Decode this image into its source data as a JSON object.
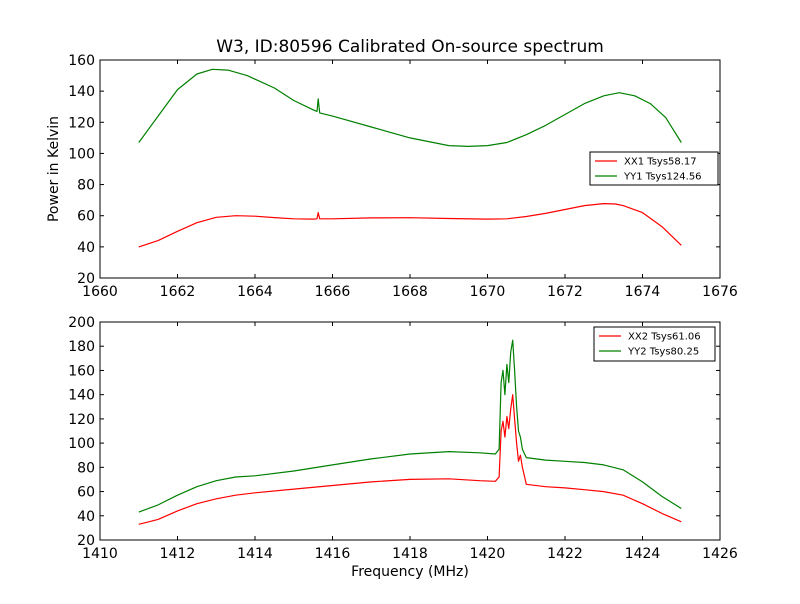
{
  "chart_data": [
    {
      "type": "line",
      "title": "W3, ID:80596 Calibrated On-source spectrum",
      "xlabel": "",
      "ylabel": "Power in Kelvin",
      "xlim": [
        1660,
        1676
      ],
      "ylim": [
        20,
        160
      ],
      "xticks": [
        "1660",
        "1662",
        "1664",
        "1666",
        "1668",
        "1670",
        "1672",
        "1674",
        "1676"
      ],
      "yticks": [
        "20",
        "40",
        "60",
        "80",
        "100",
        "120",
        "140",
        "160"
      ],
      "legend_position": "center-right",
      "series": [
        {
          "name": "XX1 Tsys58.17",
          "color": "#ff0000",
          "points": [
            [
              1661.0,
              40
            ],
            [
              1661.5,
              44
            ],
            [
              1662.0,
              50
            ],
            [
              1662.5,
              55.5
            ],
            [
              1663.0,
              59
            ],
            [
              1663.5,
              60
            ],
            [
              1664.0,
              59.7
            ],
            [
              1664.5,
              58.8
            ],
            [
              1665.0,
              58
            ],
            [
              1665.5,
              57.8
            ],
            [
              1665.6,
              58
            ],
            [
              1665.63,
              62
            ],
            [
              1665.67,
              58
            ],
            [
              1666.0,
              58
            ],
            [
              1667.0,
              58.6
            ],
            [
              1668.0,
              58.7
            ],
            [
              1669.0,
              58.2
            ],
            [
              1670.0,
              57.8
            ],
            [
              1670.5,
              58
            ],
            [
              1671.0,
              59.5
            ],
            [
              1671.5,
              61.5
            ],
            [
              1672.0,
              64
            ],
            [
              1672.5,
              66.5
            ],
            [
              1673.0,
              67.8
            ],
            [
              1673.3,
              67.5
            ],
            [
              1673.5,
              66.5
            ],
            [
              1674.0,
              62
            ],
            [
              1674.5,
              53
            ],
            [
              1675.0,
              41
            ]
          ]
        },
        {
          "name": "YY1 Tsys124.56",
          "color": "#008000",
          "points": [
            [
              1661.0,
              107
            ],
            [
              1661.5,
              124
            ],
            [
              1662.0,
              141
            ],
            [
              1662.5,
              151
            ],
            [
              1662.9,
              154
            ],
            [
              1663.3,
              153.5
            ],
            [
              1663.8,
              150
            ],
            [
              1664.5,
              142
            ],
            [
              1665.0,
              134
            ],
            [
              1665.5,
              128
            ],
            [
              1665.6,
              127
            ],
            [
              1665.63,
              135
            ],
            [
              1665.67,
              126
            ],
            [
              1666.0,
              124
            ],
            [
              1667.0,
              117
            ],
            [
              1668.0,
              110
            ],
            [
              1669.0,
              105
            ],
            [
              1669.5,
              104.5
            ],
            [
              1670.0,
              105
            ],
            [
              1670.5,
              107
            ],
            [
              1671.0,
              112
            ],
            [
              1671.5,
              118
            ],
            [
              1672.0,
              125
            ],
            [
              1672.5,
              132
            ],
            [
              1673.0,
              137
            ],
            [
              1673.4,
              139
            ],
            [
              1673.8,
              137
            ],
            [
              1674.2,
              132
            ],
            [
              1674.6,
              123
            ],
            [
              1675.0,
              107
            ]
          ]
        }
      ]
    },
    {
      "type": "line",
      "title": "",
      "xlabel": "Frequency (MHz)",
      "ylabel": "",
      "xlim": [
        1410,
        1426
      ],
      "ylim": [
        20,
        200
      ],
      "xticks": [
        "1410",
        "1412",
        "1414",
        "1416",
        "1418",
        "1420",
        "1422",
        "1424",
        "1426"
      ],
      "yticks": [
        "20",
        "40",
        "60",
        "80",
        "100",
        "120",
        "140",
        "160",
        "180",
        "200"
      ],
      "legend_position": "top-right",
      "series": [
        {
          "name": "XX2 Tsys61.06",
          "color": "#ff0000",
          "points": [
            [
              1411.0,
              33
            ],
            [
              1411.5,
              37
            ],
            [
              1412.0,
              44
            ],
            [
              1412.5,
              50
            ],
            [
              1413.0,
              54
            ],
            [
              1413.5,
              57
            ],
            [
              1414.0,
              59
            ],
            [
              1415.0,
              62
            ],
            [
              1416.0,
              65
            ],
            [
              1417.0,
              68
            ],
            [
              1418.0,
              70
            ],
            [
              1419.0,
              70.5
            ],
            [
              1419.8,
              69
            ],
            [
              1420.2,
              68.5
            ],
            [
              1420.3,
              72
            ],
            [
              1420.35,
              110
            ],
            [
              1420.4,
              118
            ],
            [
              1420.45,
              105
            ],
            [
              1420.5,
              122
            ],
            [
              1420.55,
              112
            ],
            [
              1420.6,
              128
            ],
            [
              1420.65,
              140
            ],
            [
              1420.7,
              120
            ],
            [
              1420.75,
              100
            ],
            [
              1420.8,
              85
            ],
            [
              1420.85,
              90
            ],
            [
              1420.9,
              80
            ],
            [
              1421.0,
              66
            ],
            [
              1421.5,
              64
            ],
            [
              1422.0,
              63
            ],
            [
              1422.5,
              61.5
            ],
            [
              1423.0,
              60
            ],
            [
              1423.5,
              57
            ],
            [
              1424.0,
              50
            ],
            [
              1424.5,
              42
            ],
            [
              1425.0,
              35
            ]
          ]
        },
        {
          "name": "YY2 Tsys80.25",
          "color": "#008000",
          "points": [
            [
              1411.0,
              43
            ],
            [
              1411.5,
              49
            ],
            [
              1412.0,
              57
            ],
            [
              1412.5,
              64
            ],
            [
              1413.0,
              69
            ],
            [
              1413.5,
              72
            ],
            [
              1414.0,
              73
            ],
            [
              1415.0,
              77
            ],
            [
              1416.0,
              82
            ],
            [
              1417.0,
              87
            ],
            [
              1418.0,
              91
            ],
            [
              1419.0,
              93
            ],
            [
              1419.8,
              92
            ],
            [
              1420.2,
              91
            ],
            [
              1420.3,
              95
            ],
            [
              1420.35,
              150
            ],
            [
              1420.4,
              160
            ],
            [
              1420.45,
              140
            ],
            [
              1420.5,
              165
            ],
            [
              1420.55,
              150
            ],
            [
              1420.6,
              175
            ],
            [
              1420.65,
              185
            ],
            [
              1420.7,
              160
            ],
            [
              1420.75,
              130
            ],
            [
              1420.8,
              110
            ],
            [
              1420.85,
              105
            ],
            [
              1420.9,
              95
            ],
            [
              1421.0,
              88
            ],
            [
              1421.5,
              86
            ],
            [
              1422.0,
              85
            ],
            [
              1422.5,
              84
            ],
            [
              1423.0,
              82
            ],
            [
              1423.5,
              78
            ],
            [
              1424.0,
              68
            ],
            [
              1424.5,
              56
            ],
            [
              1425.0,
              46
            ]
          ]
        }
      ]
    }
  ]
}
